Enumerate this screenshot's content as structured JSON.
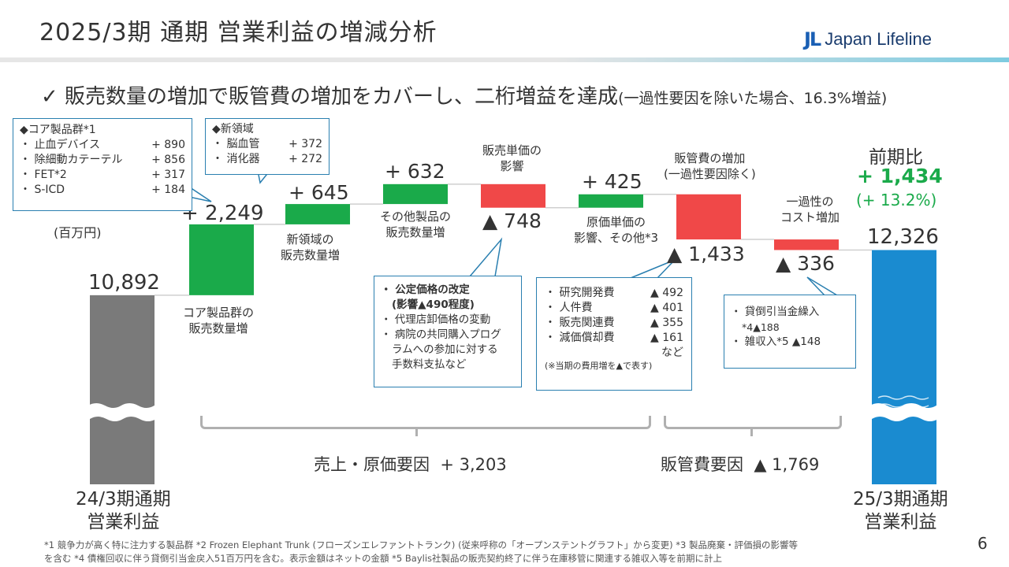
{
  "slide": {
    "title": "2025/3期 通期 営業利益の増減分析",
    "logo_mark": "JL",
    "logo_text": "Japan Lifeline",
    "headline": "✓ 販売数量の増加で販管費の増加をカバーし、二桁増益を達成",
    "headline_sub": "(一過性要因を除いた場合、16.3%増益)",
    "unit": "(百万円)",
    "page_number": "6"
  },
  "chart_data": {
    "type": "waterfall",
    "unit": "(百万円)",
    "bars": [
      {
        "label": "24/3期通期\n営業利益",
        "value": 10892,
        "display": "10,892",
        "kind": "total",
        "color": "#7a7a7a"
      },
      {
        "label": "コア製品群の\n販売数量増",
        "value": 2249,
        "display": "+ 2,249",
        "kind": "increase",
        "color": "#1aaa4a"
      },
      {
        "label": "新領域の\n販売数量増",
        "value": 645,
        "display": "+ 645",
        "kind": "increase",
        "color": "#1aaa4a"
      },
      {
        "label": "その他製品の\n販売数量増",
        "value": 632,
        "display": "+ 632",
        "kind": "increase",
        "color": "#1aaa4a"
      },
      {
        "label": "販売単価の\n影響",
        "value": -748,
        "display": "▲ 748",
        "kind": "decrease",
        "color": "#f04848"
      },
      {
        "label": "原価単価の\n影響、その他*3",
        "value": 425,
        "display": "+ 425",
        "kind": "increase",
        "color": "#1aaa4a"
      },
      {
        "label": "販管費の増加\n(一過性要因除く)",
        "value": -1433,
        "display": "▲ 1,433",
        "kind": "decrease",
        "color": "#f04848"
      },
      {
        "label": "一過性の\nコスト増加",
        "value": -336,
        "display": "▲ 336",
        "kind": "decrease",
        "color": "#f04848"
      },
      {
        "label": "25/3期通期\n営業利益",
        "value": 12326,
        "display": "12,326",
        "kind": "total",
        "color": "#1a8bd0"
      }
    ],
    "yoy": {
      "title": "前期比",
      "value": "+ 1,434",
      "pct": "(+ 13.2%)"
    }
  },
  "groups": {
    "sales_cost": {
      "label": "売上・原価要因",
      "value": "+ 3,203"
    },
    "sga": {
      "label": "販管費要因",
      "value": "▲ 1,769"
    }
  },
  "callouts": {
    "core": {
      "title": "◆コア製品群*1",
      "rows": [
        {
          "name": "・ 止血デバイス",
          "val": "+ 890"
        },
        {
          "name": "・ 除細動カテーテル",
          "val": "+ 856"
        },
        {
          "name": "・ FET*2",
          "val": "+ 317"
        },
        {
          "name": "・ S-ICD",
          "val": "+ 184"
        }
      ]
    },
    "new": {
      "title": "◆新領域",
      "rows": [
        {
          "name": "・ 脳血管",
          "val": "+ 372"
        },
        {
          "name": "・ 消化器",
          "val": "+ 272"
        }
      ]
    },
    "price": {
      "lines": [
        "・ 公定価格の改定",
        "(影響▲490程度)",
        "・ 代理店卸価格の変動",
        "・ 病院の共同購入プログ",
        "ラムへの参加に対する",
        "手数料支払など"
      ]
    },
    "sga": {
      "rows": [
        {
          "name": "・ 研究開発費",
          "val": "▲ 492"
        },
        {
          "name": "・ 人件費",
          "val": "▲ 401"
        },
        {
          "name": "・ 販売関連費",
          "val": "▲ 355"
        },
        {
          "name": "・ 減価償却費",
          "val": "▲ 161"
        }
      ],
      "etc": "など",
      "note": "(※当期の費用増を▲で表す)"
    },
    "onetime": {
      "line1": "・ 貸倒引当金繰入",
      "line2": "*4▲188",
      "line3": "・ 雑収入*5 ▲148"
    }
  },
  "footnotes": {
    "line1": "*1 競争力が高く特に注力する製品群 *2 Frozen Elephant Trunk (フローズンエレファントトランク) (従来呼称の「オープンステントグラフト」から変更) *3 製品廃棄・評価損の影響等",
    "line2": "を含む *4 債権回収に伴う貸倒引当金戻入51百万円を含む。表示金額はネットの金額 *5 Baylis社製品の販売契約終了に伴う在庫移管に関連する雑収入等を前期に計上"
  },
  "colors": {
    "increase": "#1aaa4a",
    "decrease": "#f04848",
    "start": "#7a7a7a",
    "end": "#1a8bd0",
    "accent": "#1aaa4a",
    "callout_border": "#2a7fb0"
  }
}
